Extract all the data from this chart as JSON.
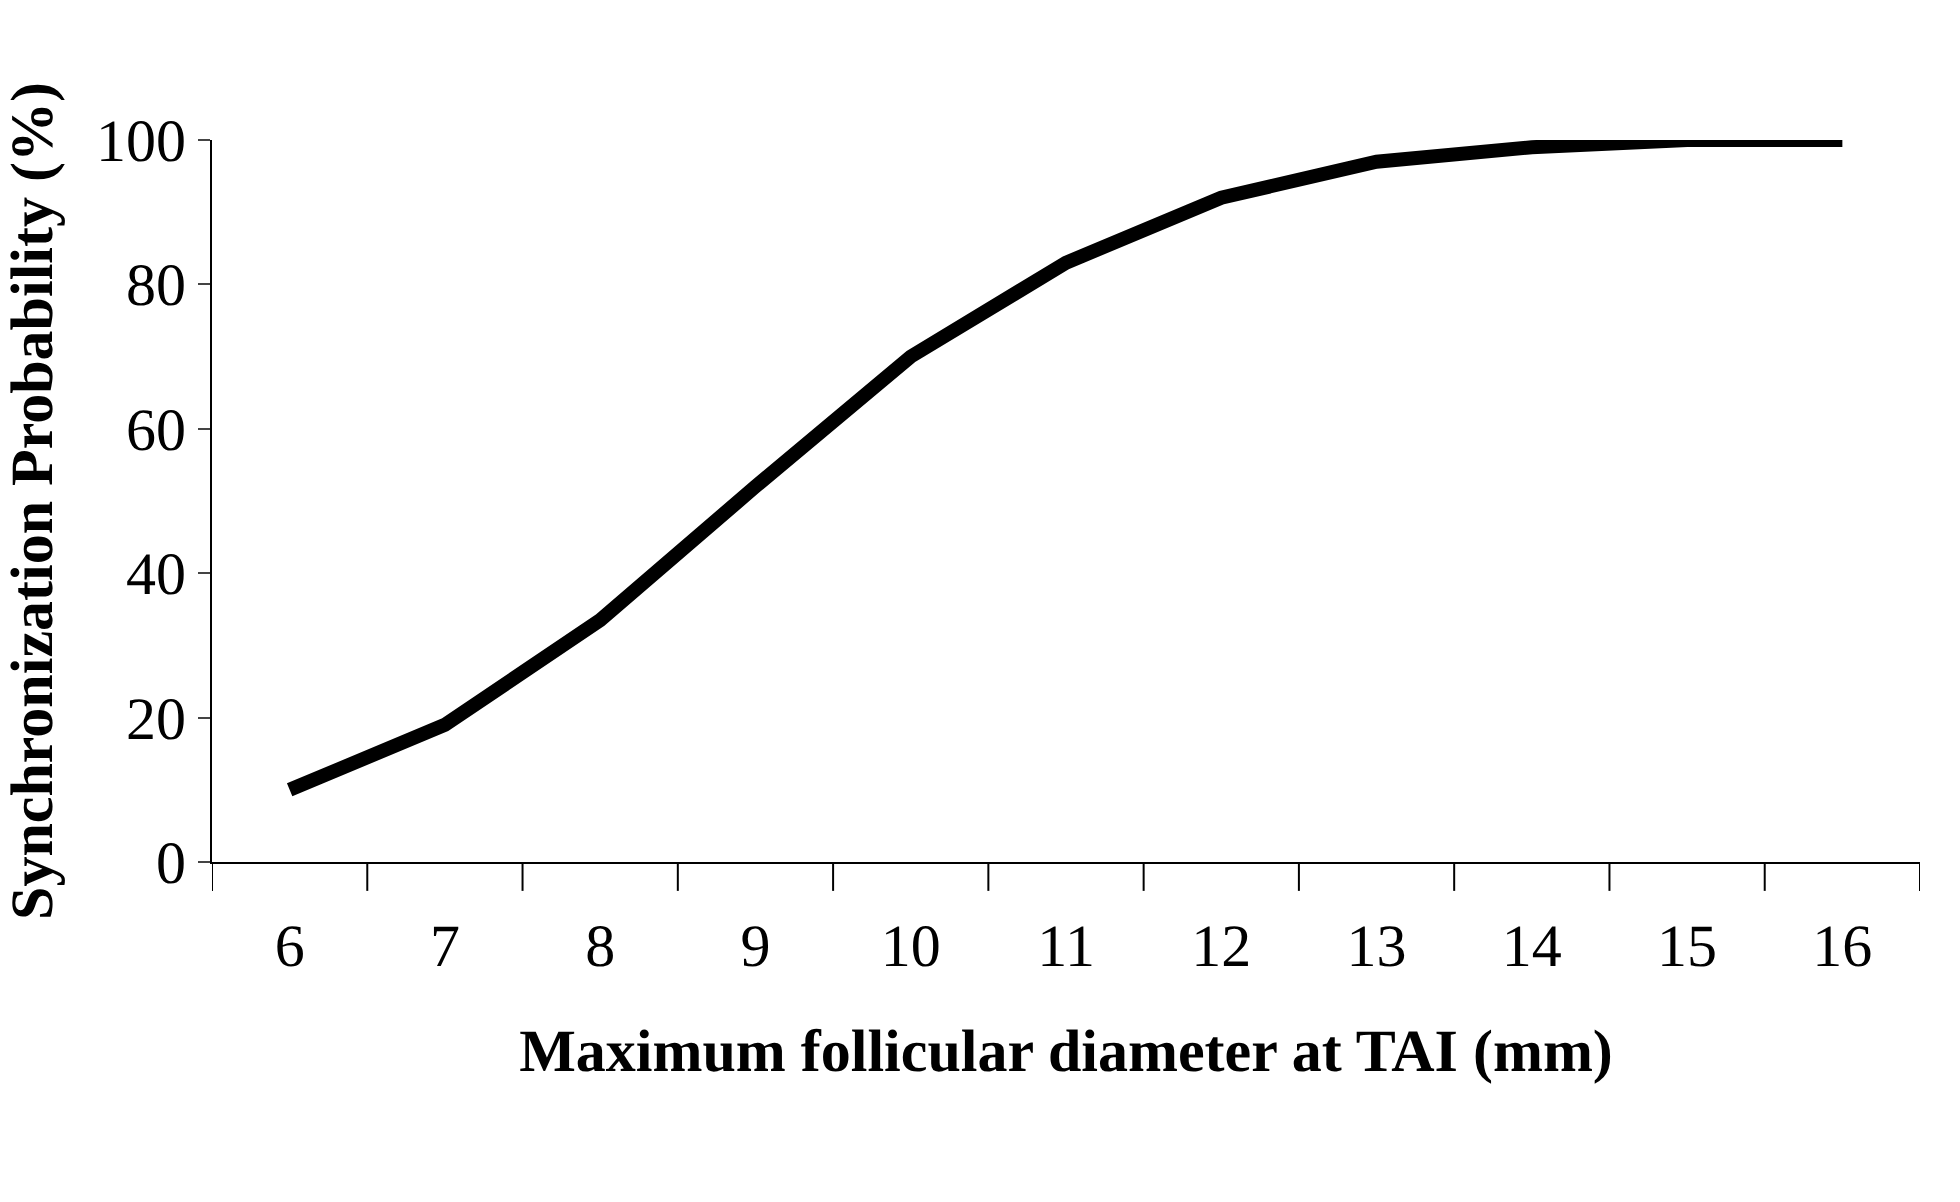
{
  "chart_data": {
    "type": "line",
    "xlabel": "Maximum follicular diameter at TAI (mm)",
    "ylabel": "Synchronization Probability (%)",
    "categories": [
      "6",
      "7",
      "8",
      "9",
      "10",
      "11",
      "12",
      "13",
      "14",
      "15",
      "16"
    ],
    "series": [
      {
        "color": "#000000",
        "values": [
          10,
          19,
          33.5,
          52,
          70,
          83,
          92,
          97,
          99,
          100,
          100
        ]
      }
    ],
    "ylim": [
      0,
      100
    ],
    "yticks": [
      0,
      20,
      40,
      60,
      80,
      100
    ],
    "marker": "none",
    "line_style": "solid"
  }
}
